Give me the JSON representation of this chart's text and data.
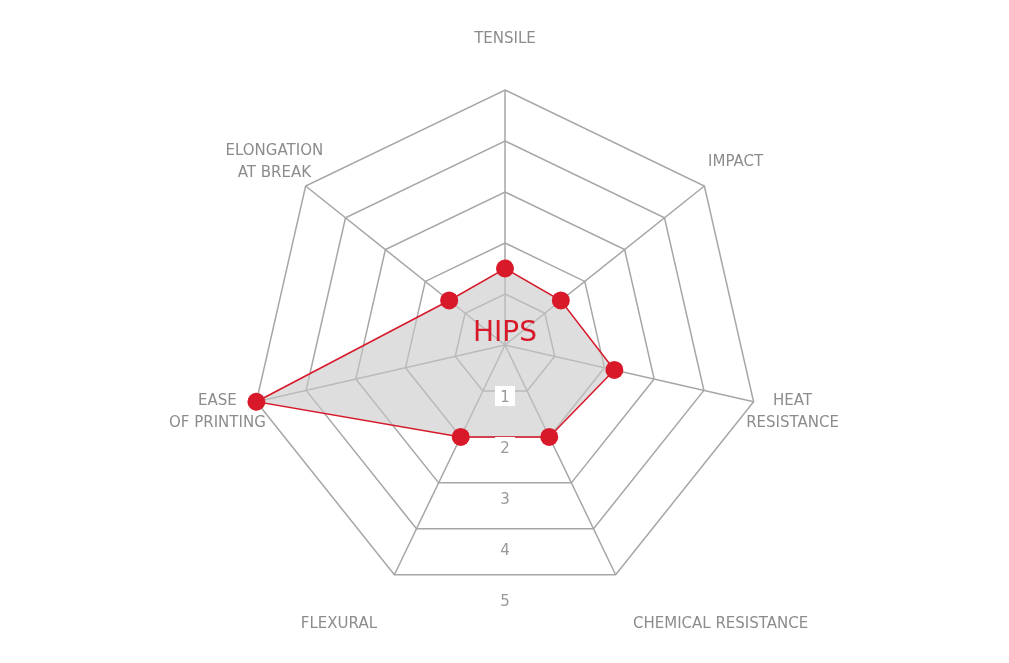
{
  "chart_data": {
    "type": "radar",
    "categories": [
      "TENSILE",
      "IMPACT",
      "HEAT\nRESISTANCE",
      "CHEMICAL RESISTANCE",
      "FLEXURAL",
      "EASE\nOF PRINTING",
      "ELONGATION\nAT BREAK"
    ],
    "series": [
      {
        "name": "HIPS",
        "color": "#d7192a",
        "values": [
          1.5,
          1.4,
          2.2,
          2,
          2,
          5,
          1.4
        ]
      }
    ],
    "ylim": [
      0,
      5
    ],
    "yticks": [
      1,
      2,
      3,
      4,
      5
    ],
    "legend": false,
    "marker": "circle",
    "grid": true
  }
}
